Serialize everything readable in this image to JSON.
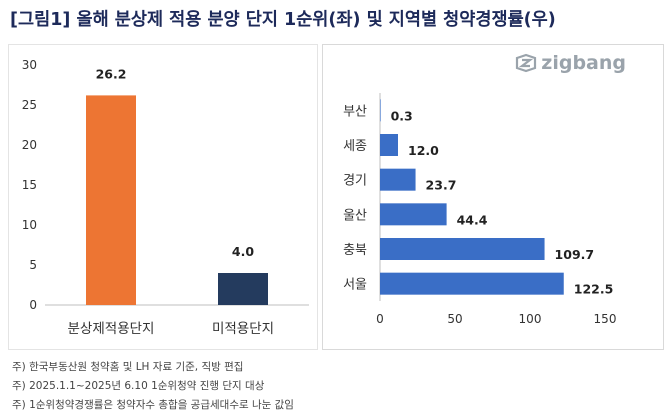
{
  "title": "[그림1] 올해 분상제 적용 분양 단지 1순위(좌) 및 지역별 청약경쟁률(우)",
  "logo_text": "zigbang",
  "colors": {
    "bar_orange": "#ED7533",
    "bar_navy": "#243B5E",
    "bar_blue": "#3A6EC6",
    "grid": "#d9d9d9",
    "axis": "#bfbfbf"
  },
  "chart_data": [
    {
      "type": "bar",
      "orientation": "vertical",
      "categories": [
        "분상제적용단지",
        "미적용단지"
      ],
      "values": [
        26.2,
        4.0
      ],
      "value_labels": [
        "26.2",
        "4.0"
      ],
      "ylim": [
        0,
        30
      ],
      "yticks": [
        0,
        5,
        10,
        15,
        20,
        25,
        30
      ],
      "grid": false
    },
    {
      "type": "bar",
      "orientation": "horizontal",
      "categories": [
        "부산",
        "세종",
        "경기",
        "울산",
        "충북",
        "서울"
      ],
      "values": [
        0.3,
        12.0,
        23.7,
        44.4,
        109.7,
        122.5
      ],
      "value_labels": [
        "0.3",
        "12.0",
        "23.7",
        "44.4",
        "109.7",
        "122.5"
      ],
      "xlim": [
        0,
        150
      ],
      "xticks": [
        0,
        50,
        100,
        150
      ],
      "grid": false
    }
  ],
  "notes": [
    "주) 한국부동산원 청약홈 및 LH 자료 기준, 직방 편집",
    "주) 2025.1.1~2025년 6.10 1순위청약 진행 단지 대상",
    "주) 1순위청약경쟁률은 청약자수 총합을 공급세대수로 나눈 값임"
  ]
}
